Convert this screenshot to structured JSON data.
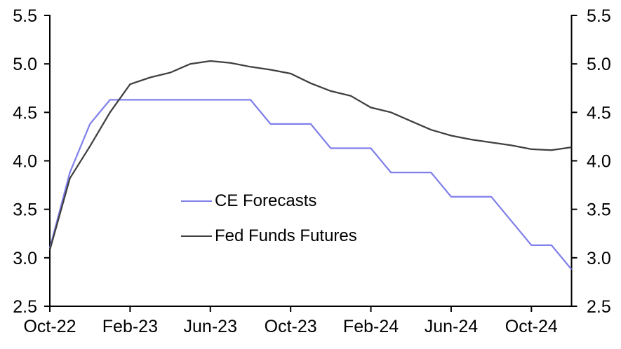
{
  "chart_data": {
    "type": "line",
    "title": "",
    "xlabel": "",
    "ylabel": "",
    "grid": false,
    "legend_position": "inside-center-left",
    "axis_color": "#000000",
    "ylim": [
      2.5,
      5.5
    ],
    "y_tick_labels": [
      "2.5",
      "3.0",
      "3.5",
      "4.0",
      "4.5",
      "5.0",
      "5.5"
    ],
    "x": [
      "Oct-22",
      "Nov-22",
      "Dec-22",
      "Jan-23",
      "Feb-23",
      "Mar-23",
      "Apr-23",
      "May-23",
      "Jun-23",
      "Jul-23",
      "Aug-23",
      "Sep-23",
      "Oct-23",
      "Nov-23",
      "Dec-23",
      "Jan-24",
      "Feb-24",
      "Mar-24",
      "Apr-24",
      "May-24",
      "Jun-24",
      "Jul-24",
      "Aug-24",
      "Sep-24",
      "Oct-24",
      "Nov-24",
      "Dec-24"
    ],
    "x_tick_labels": [
      "Oct-22",
      "Feb-23",
      "Jun-23",
      "Oct-23",
      "Feb-24",
      "Jun-24",
      "Oct-24"
    ],
    "series": [
      {
        "name": "CE Forecasts",
        "color": "#8080EC",
        "values": [
          3.1,
          3.88,
          4.38,
          4.63,
          4.63,
          4.63,
          4.63,
          4.63,
          4.63,
          4.63,
          4.63,
          4.38,
          4.38,
          4.38,
          4.13,
          4.13,
          4.13,
          3.88,
          3.88,
          3.88,
          3.63,
          3.63,
          3.63,
          3.38,
          3.13,
          3.13,
          2.88
        ]
      },
      {
        "name": "Fed Funds Futures",
        "color": "#3F3F3F",
        "values": [
          3.08,
          3.82,
          4.15,
          4.5,
          4.79,
          4.86,
          4.91,
          5.0,
          5.03,
          5.01,
          4.97,
          4.94,
          4.9,
          4.8,
          4.72,
          4.67,
          4.55,
          4.5,
          4.41,
          4.32,
          4.26,
          4.22,
          4.19,
          4.16,
          4.12,
          4.11,
          4.14
        ]
      }
    ]
  }
}
